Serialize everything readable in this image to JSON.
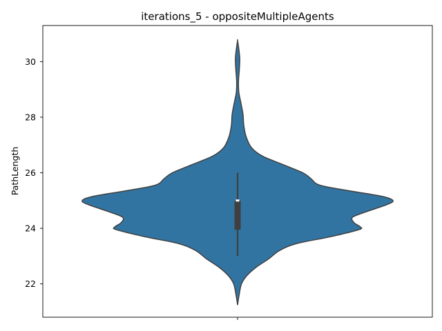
{
  "chart_data": {
    "type": "violin",
    "title": "iterations_5 - oppositeMultipleAgents",
    "xlabel": "",
    "ylabel": "PathLength",
    "ylim": [
      20.8,
      31.3
    ],
    "yticks": [
      22,
      24,
      26,
      28,
      30
    ],
    "grid": false,
    "color": "#3274a1",
    "edge_color": "#3f3f3f",
    "density": [
      {
        "y": 21.25,
        "w": 0.0
      },
      {
        "y": 21.6,
        "w": 0.01
      },
      {
        "y": 22.0,
        "w": 0.025
      },
      {
        "y": 22.3,
        "w": 0.06
      },
      {
        "y": 22.6,
        "w": 0.12
      },
      {
        "y": 22.9,
        "w": 0.2
      },
      {
        "y": 23.2,
        "w": 0.27
      },
      {
        "y": 23.45,
        "w": 0.38
      },
      {
        "y": 23.7,
        "w": 0.6
      },
      {
        "y": 23.95,
        "w": 0.78
      },
      {
        "y": 24.05,
        "w": 0.79
      },
      {
        "y": 24.2,
        "w": 0.75
      },
      {
        "y": 24.4,
        "w": 0.74
      },
      {
        "y": 24.6,
        "w": 0.83
      },
      {
        "y": 24.85,
        "w": 0.96
      },
      {
        "y": 25.0,
        "w": 1.0
      },
      {
        "y": 25.15,
        "w": 0.93
      },
      {
        "y": 25.35,
        "w": 0.72
      },
      {
        "y": 25.55,
        "w": 0.53
      },
      {
        "y": 25.8,
        "w": 0.47
      },
      {
        "y": 26.0,
        "w": 0.42
      },
      {
        "y": 26.3,
        "w": 0.29
      },
      {
        "y": 26.6,
        "w": 0.16
      },
      {
        "y": 26.9,
        "w": 0.09
      },
      {
        "y": 27.3,
        "w": 0.055
      },
      {
        "y": 27.7,
        "w": 0.04
      },
      {
        "y": 28.1,
        "w": 0.035
      },
      {
        "y": 28.5,
        "w": 0.022
      },
      {
        "y": 28.9,
        "w": 0.008
      },
      {
        "y": 29.3,
        "w": 0.006
      },
      {
        "y": 29.7,
        "w": 0.011
      },
      {
        "y": 30.1,
        "w": 0.014
      },
      {
        "y": 30.45,
        "w": 0.008
      },
      {
        "y": 30.75,
        "w": 0.0
      }
    ],
    "box": {
      "q1": 23.95,
      "median": 25.0,
      "q3": 25.0,
      "whisker_low": 23.0,
      "whisker_high": 26.0
    }
  }
}
